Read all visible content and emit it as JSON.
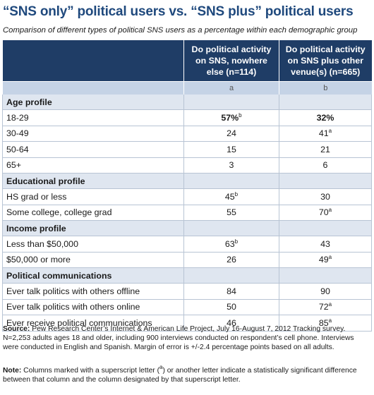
{
  "title": "“SNS only” political users vs. “SNS plus” political users",
  "subtitle": "Comparison of different types of political SNS users as a percentage within each demographic group",
  "columns": {
    "col1": "Do political activity on SNS, nowhere else (n=114)",
    "col2": "Do political activity on SNS plus other venue(s) (n=665)",
    "col1_letter": "a",
    "col2_letter": "b"
  },
  "sections": [
    {
      "label": "Age profile",
      "rows": [
        {
          "label": "18-29",
          "a": "57%",
          "a_sup": "b",
          "a_bold": true,
          "b": "32%",
          "b_sup": "",
          "b_bold": true
        },
        {
          "label": "30-49",
          "a": "24",
          "a_sup": "",
          "b": "41",
          "b_sup": "a"
        },
        {
          "label": "50-64",
          "a": "15",
          "a_sup": "",
          "b": "21",
          "b_sup": ""
        },
        {
          "label": "65+",
          "a": "3",
          "a_sup": "",
          "b": "6",
          "b_sup": ""
        }
      ]
    },
    {
      "label": "Educational profile",
      "rows": [
        {
          "label": "HS grad or less",
          "a": "45",
          "a_sup": "b",
          "b": "30",
          "b_sup": ""
        },
        {
          "label": "Some college, college grad",
          "a": "55",
          "a_sup": "",
          "b": "70",
          "b_sup": "a"
        }
      ]
    },
    {
      "label": "Income profile",
      "rows": [
        {
          "label": "Less than $50,000",
          "a": "63",
          "a_sup": "b",
          "b": "43",
          "b_sup": ""
        },
        {
          "label": "$50,000 or more",
          "a": "26",
          "a_sup": "",
          "b": "49",
          "b_sup": "a"
        }
      ]
    },
    {
      "label": "Political communications",
      "rows": [
        {
          "label": "Ever talk politics with others offline",
          "a": "84",
          "a_sup": "",
          "b": "90",
          "b_sup": ""
        },
        {
          "label": "Ever talk politics with others online",
          "a": "50",
          "a_sup": "",
          "b": "72",
          "b_sup": "a"
        },
        {
          "label": "Ever receive political communications",
          "a": "46",
          "a_sup": "",
          "b": "85",
          "b_sup": "a"
        }
      ]
    }
  ],
  "source": {
    "label": "Source:",
    "text": " Pew Research Center’s Internet & American Life Project, July 16-August 7, 2012 Tracking survey. N=2,253 adults ages 18 and older, including 900 interviews conducted on respondent’s cell phone.  Interviews were conducted in English and Spanish. Margin of error is +/-2.4 percentage points based on all adults."
  },
  "note": {
    "label": "Note:",
    "text_before": " Columns marked with a superscript letter (",
    "sup": "a",
    "text_after": ") or another letter indicate a statistically significant difference between that column and the column designated by that superscript letter."
  },
  "colors": {
    "title": "#1f497d",
    "header_bg": "#1f3d66",
    "letter_row_bg": "#c5d3e6",
    "section_bg": "#dfe6f0"
  }
}
